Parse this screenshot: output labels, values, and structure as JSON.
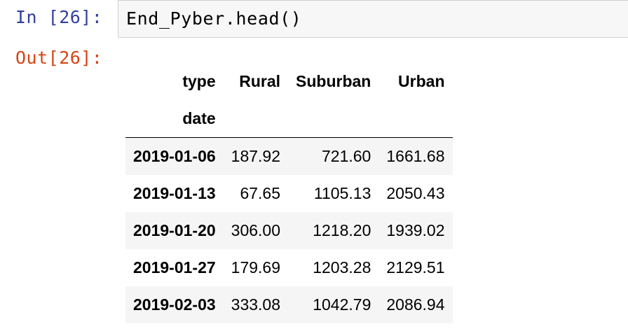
{
  "input_prompt": "In [26]:",
  "output_prompt": "Out[26]:",
  "code": "End_Pyber.head()",
  "dataframe": {
    "columns_name": "type",
    "index_name": "date",
    "columns": [
      "Rural",
      "Suburban",
      "Urban"
    ],
    "rows": [
      {
        "index": "2019-01-06",
        "values": [
          "187.92",
          "721.60",
          "1661.68"
        ]
      },
      {
        "index": "2019-01-13",
        "values": [
          "67.65",
          "1105.13",
          "2050.43"
        ]
      },
      {
        "index": "2019-01-20",
        "values": [
          "306.00",
          "1218.20",
          "1939.02"
        ]
      },
      {
        "index": "2019-01-27",
        "values": [
          "179.69",
          "1203.28",
          "2129.51"
        ]
      },
      {
        "index": "2019-02-03",
        "values": [
          "333.08",
          "1042.79",
          "2086.94"
        ]
      }
    ]
  },
  "colors": {
    "input_prompt": "#303f9f",
    "output_prompt": "#d84315",
    "code_background": "#f7f7f7",
    "stripe": "#f5f5f5"
  }
}
